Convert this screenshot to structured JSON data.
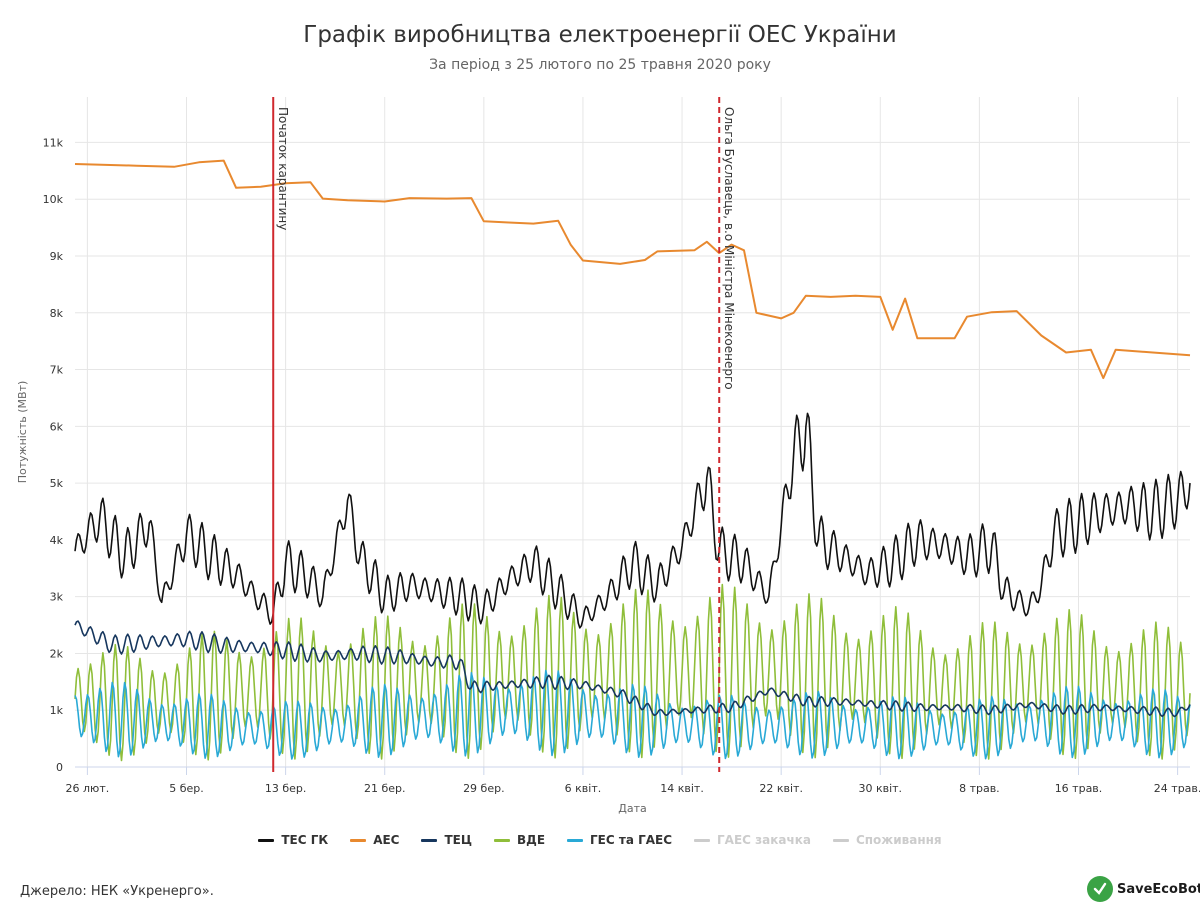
{
  "chart_data": {
    "type": "line",
    "title": "Графік виробництва електроенергії ОЕС України",
    "subtitle": "За період з 25 лютого по 25 травня 2020 року",
    "xlabel": "Дата",
    "ylabel": "Потужність (МВт)",
    "ylim": [
      0,
      11800
    ],
    "grid": true,
    "legend_position": "bottom",
    "x_start": "2020-02-25",
    "x_end": "2020-05-25",
    "x_ticks": [
      {
        "date": "2020-02-26",
        "label": "26 лют."
      },
      {
        "date": "2020-03-05",
        "label": "5 бер."
      },
      {
        "date": "2020-03-13",
        "label": "13 бер."
      },
      {
        "date": "2020-03-21",
        "label": "21 бер."
      },
      {
        "date": "2020-03-29",
        "label": "29 бер."
      },
      {
        "date": "2020-04-06",
        "label": "6 квіт."
      },
      {
        "date": "2020-04-14",
        "label": "14 квіт."
      },
      {
        "date": "2020-04-22",
        "label": "22 квіт."
      },
      {
        "date": "2020-04-30",
        "label": "30 квіт."
      },
      {
        "date": "2020-05-08",
        "label": "8 трав."
      },
      {
        "date": "2020-05-16",
        "label": "16 трав."
      },
      {
        "date": "2020-05-24",
        "label": "24 трав."
      }
    ],
    "y_ticks": [
      {
        "value": 0,
        "label": "0"
      },
      {
        "value": 1000,
        "label": "1k"
      },
      {
        "value": 2000,
        "label": "2k"
      },
      {
        "value": 3000,
        "label": "3k"
      },
      {
        "value": 4000,
        "label": "4k"
      },
      {
        "value": 5000,
        "label": "5k"
      },
      {
        "value": 6000,
        "label": "6k"
      },
      {
        "value": 7000,
        "label": "7k"
      },
      {
        "value": 8000,
        "label": "8k"
      },
      {
        "value": 9000,
        "label": "9k"
      },
      {
        "value": 10000,
        "label": "10k"
      },
      {
        "value": 11000,
        "label": "11k"
      }
    ],
    "annotations": [
      {
        "date": "2020-03-12",
        "label": "Початок карантину",
        "style": "solid",
        "color": "#d0282e"
      },
      {
        "date": "2020-04-17",
        "label": "Ольга Буславець, в.о Міністра Мінекоенерго",
        "style": "dashed",
        "color": "#d0282e"
      }
    ],
    "series": [
      {
        "name": "ТЕС ГК",
        "color": "#111111",
        "visible": true,
        "points": [
          [
            "2020-02-25",
            3800
          ],
          [
            "2020-02-27",
            4400
          ],
          [
            "2020-02-29",
            3700
          ],
          [
            "2020-03-02",
            4300
          ],
          [
            "2020-03-03",
            2900
          ],
          [
            "2020-03-05",
            4100
          ],
          [
            "2020-03-07",
            3700
          ],
          [
            "2020-03-09",
            3400
          ],
          [
            "2020-03-11",
            2900
          ],
          [
            "2020-03-12",
            2700
          ],
          [
            "2020-03-13",
            3600
          ],
          [
            "2020-03-15",
            3300
          ],
          [
            "2020-03-16",
            3000
          ],
          [
            "2020-03-18",
            4700
          ],
          [
            "2020-03-19",
            3700
          ],
          [
            "2020-03-21",
            3000
          ],
          [
            "2020-03-23",
            3200
          ],
          [
            "2020-03-25",
            3100
          ],
          [
            "2020-03-27",
            3000
          ],
          [
            "2020-03-29",
            2800
          ],
          [
            "2020-03-31",
            3300
          ],
          [
            "2020-04-02",
            3600
          ],
          [
            "2020-04-04",
            3100
          ],
          [
            "2020-04-06",
            2600
          ],
          [
            "2020-04-08",
            3000
          ],
          [
            "2020-04-10",
            3600
          ],
          [
            "2020-04-12",
            3200
          ],
          [
            "2020-04-14",
            3900
          ],
          [
            "2020-04-15",
            4500
          ],
          [
            "2020-04-16",
            5100
          ],
          [
            "2020-04-17",
            3800
          ],
          [
            "2020-04-19",
            3600
          ],
          [
            "2020-04-21",
            3000
          ],
          [
            "2020-04-23",
            5500
          ],
          [
            "2020-04-24",
            6000
          ],
          [
            "2020-04-25",
            4000
          ],
          [
            "2020-04-27",
            3700
          ],
          [
            "2020-04-29",
            3400
          ],
          [
            "2020-05-01",
            3600
          ],
          [
            "2020-05-03",
            4000
          ],
          [
            "2020-05-05",
            3900
          ],
          [
            "2020-05-07",
            3700
          ],
          [
            "2020-05-09",
            3900
          ],
          [
            "2020-05-10",
            3100
          ],
          [
            "2020-05-12",
            2800
          ],
          [
            "2020-05-13",
            3200
          ],
          [
            "2020-05-14",
            4100
          ],
          [
            "2020-05-16",
            4300
          ],
          [
            "2020-05-18",
            4500
          ],
          [
            "2020-05-20",
            4600
          ],
          [
            "2020-05-22",
            4500
          ],
          [
            "2020-05-24",
            4700
          ],
          [
            "2020-05-25",
            5000
          ]
        ]
      },
      {
        "name": "АЕС",
        "color": "#e8892f",
        "visible": true,
        "points": [
          [
            "2020-02-25",
            10620
          ],
          [
            "2020-03-01",
            10590
          ],
          [
            "2020-03-04",
            10570
          ],
          [
            "2020-03-06",
            10650
          ],
          [
            "2020-03-08",
            10680
          ],
          [
            "2020-03-09",
            10200
          ],
          [
            "2020-03-11",
            10220
          ],
          [
            "2020-03-13",
            10280
          ],
          [
            "2020-03-15",
            10300
          ],
          [
            "2020-03-16",
            10010
          ],
          [
            "2020-03-18",
            9980
          ],
          [
            "2020-03-21",
            9960
          ],
          [
            "2020-03-23",
            10020
          ],
          [
            "2020-03-26",
            10010
          ],
          [
            "2020-03-28",
            10020
          ],
          [
            "2020-03-29",
            9610
          ],
          [
            "2020-03-31",
            9590
          ],
          [
            "2020-04-02",
            9570
          ],
          [
            "2020-04-04",
            9620
          ],
          [
            "2020-04-05",
            9200
          ],
          [
            "2020-04-06",
            8920
          ],
          [
            "2020-04-09",
            8860
          ],
          [
            "2020-04-11",
            8930
          ],
          [
            "2020-04-12",
            9080
          ],
          [
            "2020-04-15",
            9100
          ],
          [
            "2020-04-16",
            9250
          ],
          [
            "2020-04-17",
            9050
          ],
          [
            "2020-04-18",
            9200
          ],
          [
            "2020-04-19",
            9100
          ],
          [
            "2020-04-20",
            8000
          ],
          [
            "2020-04-22",
            7900
          ],
          [
            "2020-04-23",
            8000
          ],
          [
            "2020-04-24",
            8300
          ],
          [
            "2020-04-26",
            8280
          ],
          [
            "2020-04-28",
            8300
          ],
          [
            "2020-04-30",
            8280
          ],
          [
            "2020-05-01",
            7700
          ],
          [
            "2020-05-02",
            8250
          ],
          [
            "2020-05-03",
            7550
          ],
          [
            "2020-05-06",
            7550
          ],
          [
            "2020-05-07",
            7930
          ],
          [
            "2020-05-09",
            8010
          ],
          [
            "2020-05-11",
            8030
          ],
          [
            "2020-05-13",
            7600
          ],
          [
            "2020-05-15",
            7300
          ],
          [
            "2020-05-17",
            7350
          ],
          [
            "2020-05-18",
            6850
          ],
          [
            "2020-05-19",
            7350
          ],
          [
            "2020-05-22",
            7300
          ],
          [
            "2020-05-25",
            7250
          ]
        ]
      },
      {
        "name": "ТЕЦ",
        "color": "#17375e",
        "visible": true,
        "points": [
          [
            "2020-02-25",
            2500
          ],
          [
            "2020-02-28",
            2150
          ],
          [
            "2020-03-02",
            2200
          ],
          [
            "2020-03-05",
            2250
          ],
          [
            "2020-03-08",
            2150
          ],
          [
            "2020-03-11",
            2100
          ],
          [
            "2020-03-13",
            2050
          ],
          [
            "2020-03-16",
            1950
          ],
          [
            "2020-03-19",
            2000
          ],
          [
            "2020-03-22",
            1950
          ],
          [
            "2020-03-25",
            1850
          ],
          [
            "2020-03-27",
            1850
          ],
          [
            "2020-03-28",
            1400
          ],
          [
            "2020-03-31",
            1450
          ],
          [
            "2020-04-03",
            1500
          ],
          [
            "2020-04-06",
            1450
          ],
          [
            "2020-04-09",
            1300
          ],
          [
            "2020-04-12",
            950
          ],
          [
            "2020-04-15",
            1000
          ],
          [
            "2020-04-18",
            1050
          ],
          [
            "2020-04-21",
            1350
          ],
          [
            "2020-04-24",
            1150
          ],
          [
            "2020-04-27",
            1150
          ],
          [
            "2020-04-30",
            1100
          ],
          [
            "2020-05-03",
            1050
          ],
          [
            "2020-05-06",
            1050
          ],
          [
            "2020-05-09",
            1000
          ],
          [
            "2020-05-12",
            1100
          ],
          [
            "2020-05-15",
            1000
          ],
          [
            "2020-05-18",
            1050
          ],
          [
            "2020-05-21",
            1000
          ],
          [
            "2020-05-24",
            950
          ],
          [
            "2020-05-25",
            1100
          ]
        ]
      },
      {
        "name": "ВДЕ",
        "color": "#8fbe3a",
        "visible": true,
        "points": [
          [
            "2020-02-25",
            1200
          ],
          [
            "2020-03-02",
            1100
          ],
          [
            "2020-03-08",
            1300
          ],
          [
            "2020-03-14",
            1400
          ],
          [
            "2020-03-20",
            1400
          ],
          [
            "2020-03-26",
            1500
          ],
          [
            "2020-04-01",
            1600
          ],
          [
            "2020-04-07",
            1600
          ],
          [
            "2020-04-13",
            1700
          ],
          [
            "2020-04-19",
            1700
          ],
          [
            "2020-04-25",
            1600
          ],
          [
            "2020-05-01",
            1500
          ],
          [
            "2020-05-07",
            1300
          ],
          [
            "2020-05-13",
            1500
          ],
          [
            "2020-05-19",
            1400
          ],
          [
            "2020-05-25",
            1300
          ]
        ]
      },
      {
        "name": "ГЕС та ГАЕС",
        "color": "#29a9d6",
        "visible": true,
        "points": [
          [
            "2020-02-25",
            900
          ],
          [
            "2020-03-02",
            800
          ],
          [
            "2020-03-08",
            700
          ],
          [
            "2020-03-14",
            650
          ],
          [
            "2020-03-20",
            800
          ],
          [
            "2020-03-26",
            900
          ],
          [
            "2020-04-01",
            1000
          ],
          [
            "2020-04-07",
            900
          ],
          [
            "2020-04-13",
            750
          ],
          [
            "2020-04-19",
            700
          ],
          [
            "2020-04-25",
            750
          ],
          [
            "2020-05-01",
            700
          ],
          [
            "2020-05-07",
            650
          ],
          [
            "2020-05-13",
            800
          ],
          [
            "2020-05-19",
            800
          ],
          [
            "2020-05-25",
            750
          ]
        ]
      },
      {
        "name": "ГАЕС закачка",
        "color": "#cccccc",
        "visible": false,
        "points": []
      },
      {
        "name": "Споживання",
        "color": "#cccccc",
        "visible": false,
        "points": []
      }
    ]
  },
  "footer": {
    "source": "Джерело: НЕК «Укренерго».",
    "logo_text": "SaveEcoBot"
  }
}
